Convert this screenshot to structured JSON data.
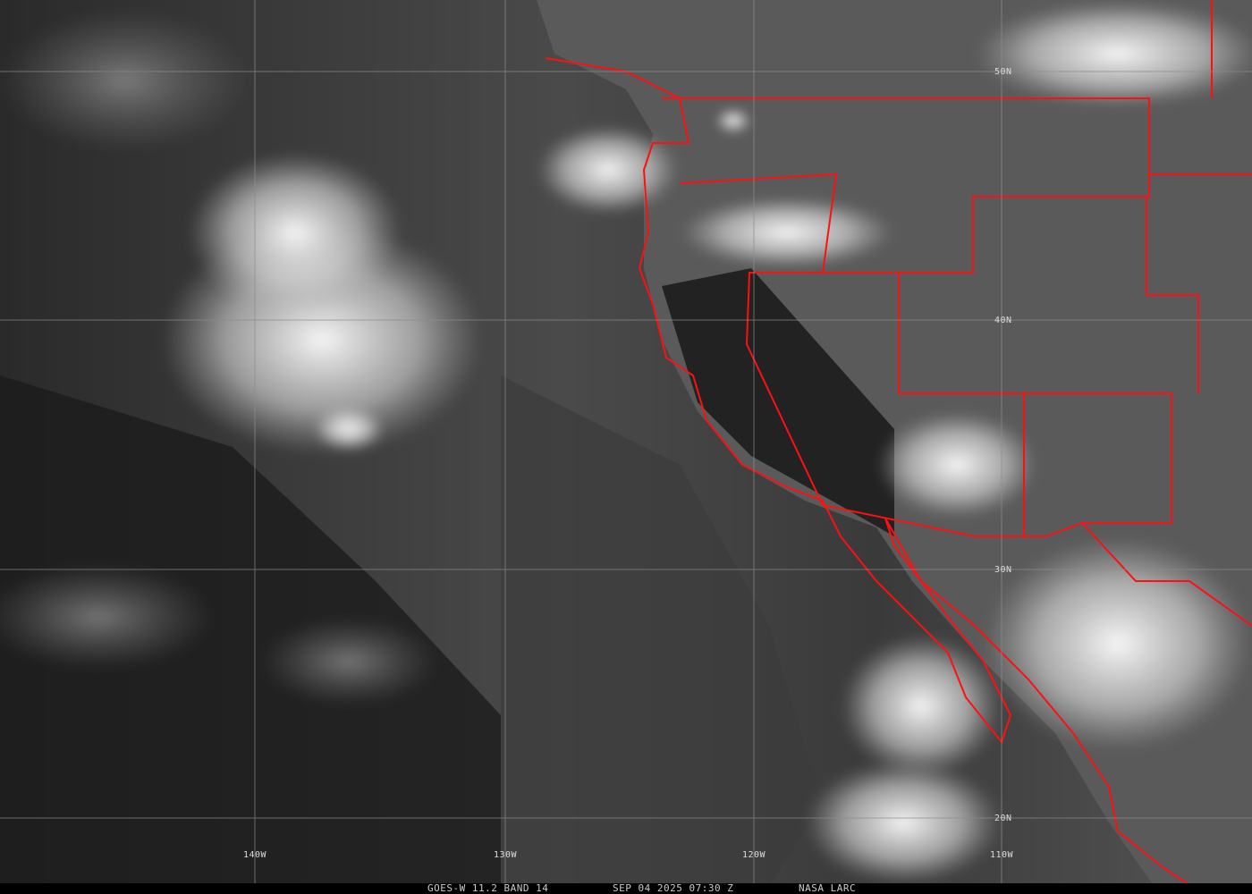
{
  "grid_labels": {
    "latitudes": [
      "50N",
      "40N",
      "30N",
      "20N"
    ],
    "longitudes": [
      "140W",
      "130W",
      "120W",
      "110W"
    ]
  },
  "footer": {
    "satellite": "GOES-W 11.2 BAND 14",
    "timestamp": "SEP 04 2025 07:30 Z",
    "source": "NASA LARC"
  }
}
